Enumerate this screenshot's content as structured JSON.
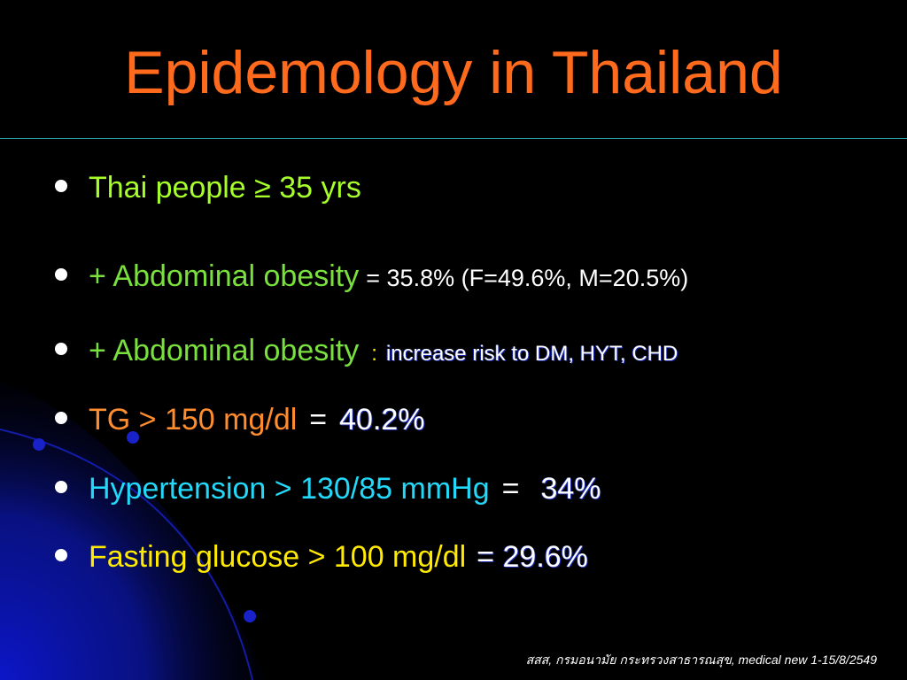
{
  "slide": {
    "title": "Epidemology in Thailand",
    "bullets": [
      {
        "text": "Thai people ≥ 35 yrs"
      },
      {
        "label": "+ Abdominal obesity",
        "value": "= 35.8% (F=49.6%, M=20.5%)"
      },
      {
        "label": "+ Abdominal obesity",
        "sep": ":",
        "value": "increase  risk to DM, HYT, CHD"
      },
      {
        "label": "TG > 150 mg/dl",
        "eq": "=",
        "value": "40.2%"
      },
      {
        "label": "Hypertension > 130/85 mmHg",
        "eq": "=",
        "value": "34%"
      },
      {
        "label": "Fasting glucose > 100 mg/dl",
        "value": "= 29.6%"
      }
    ],
    "footer": "สสส, กรมอนามัย กระทรวงสาธารณสุข, medical new 1-15/8/2549"
  },
  "colors": {
    "background": "#000000",
    "title": "#ff6a1c",
    "rule": "#2aa3a8",
    "green": "#79e03d",
    "orange": "#ff8c2e",
    "cyan": "#23d8f8",
    "yellow": "#ffea00",
    "decor_blue": "#0c16b8"
  }
}
